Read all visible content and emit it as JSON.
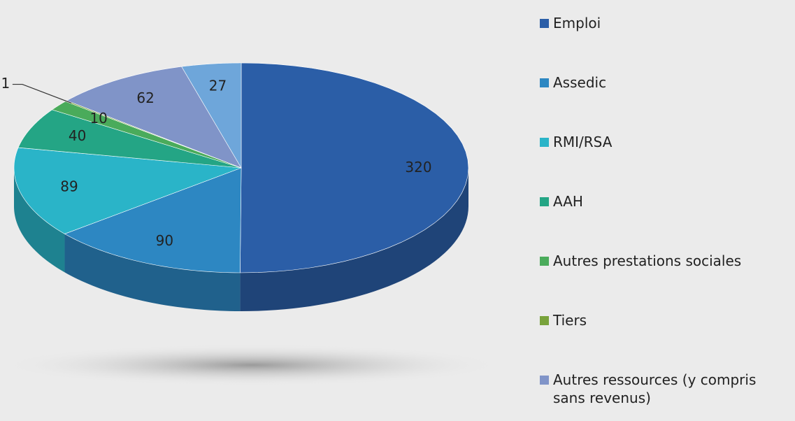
{
  "chart_data": {
    "type": "pie",
    "categories": [
      "Emploi",
      "Assedic",
      "RMI/RSA",
      "AAH",
      "Autres prestations sociales",
      "Tiers",
      "Autres ressources (y compris sans revenus)",
      null
    ],
    "values": [
      320,
      90,
      89,
      40,
      10,
      1,
      62,
      27
    ],
    "colors": [
      "#2b5ea7",
      "#2d87c2",
      "#2ab4c8",
      "#24a585",
      "#4aab5b",
      "#78a23b",
      "#8094c8",
      "#6ea6da"
    ],
    "legend": "right"
  }
}
